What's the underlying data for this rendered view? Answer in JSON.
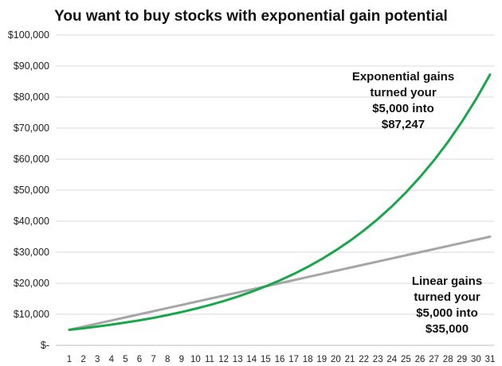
{
  "chart_data": {
    "type": "line",
    "title": "You want to buy stocks with exponential gain potential",
    "xlabel": "",
    "ylabel": "",
    "x": [
      1,
      2,
      3,
      4,
      5,
      6,
      7,
      8,
      9,
      10,
      11,
      12,
      13,
      14,
      15,
      16,
      17,
      18,
      19,
      20,
      21,
      22,
      23,
      24,
      25,
      26,
      27,
      28,
      29,
      30,
      31
    ],
    "x_tick_labels": [
      "1",
      "2",
      "3",
      "4",
      "5",
      "6",
      "7",
      "8",
      "9",
      "10",
      "11",
      "12",
      "13",
      "14",
      "15",
      "16",
      "17",
      "18",
      "19",
      "20",
      "21",
      "22",
      "23",
      "24",
      "25",
      "26",
      "27",
      "28",
      "29",
      "30",
      "31"
    ],
    "ylim": [
      0,
      100000
    ],
    "y_tick_labels": [
      "$-",
      "$10,000",
      "$20,000",
      "$30,000",
      "$40,000",
      "$50,000",
      "$60,000",
      "$70,000",
      "$80,000",
      "$90,000",
      "$100,000"
    ],
    "grid": true,
    "series": [
      {
        "color": "#1aa64b",
        "values": [
          5000,
          5500,
          6050,
          6655,
          7321,
          8053,
          8858,
          9744,
          10718,
          11790,
          12969,
          14266,
          15692,
          17262,
          18988,
          20887,
          22975,
          25273,
          27800,
          30580,
          33638,
          37002,
          40702,
          44772,
          49249,
          54174,
          59592,
          65551,
          72106,
          79317,
          87247
        ]
      },
      {
        "color": "#a6a6a6",
        "values": [
          5000,
          6000,
          7000,
          8000,
          9000,
          10000,
          11000,
          12000,
          13000,
          14000,
          15000,
          16000,
          17000,
          18000,
          19000,
          20000,
          21000,
          22000,
          23000,
          24000,
          25000,
          26000,
          27000,
          28000,
          29000,
          30000,
          31000,
          32000,
          33000,
          34000,
          35000
        ]
      }
    ],
    "annotations": [
      {
        "lines": [
          "Exponential gains",
          "turned your",
          "$5,000 into",
          "$87,247"
        ]
      },
      {
        "lines": [
          "Linear gains",
          "turned your",
          "$5,000 into",
          "$35,000"
        ]
      }
    ]
  }
}
